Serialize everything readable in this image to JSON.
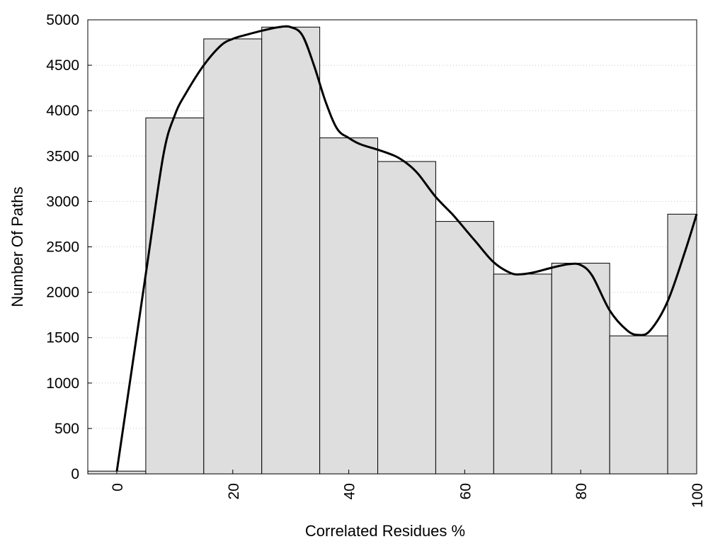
{
  "chart_data": {
    "type": "bar",
    "title": "",
    "xlabel": "Correlated Residues %",
    "ylabel": "Number Of Paths",
    "xlim": [
      -5,
      100
    ],
    "ylim": [
      0,
      5000
    ],
    "grid": "horizontal-dotted",
    "bar_color": "#dedede",
    "bar_edge_color": "#000000",
    "line_color": "#000000",
    "x_ticks": [
      0,
      20,
      40,
      60,
      80,
      100
    ],
    "y_ticks": [
      0,
      500,
      1000,
      1500,
      2000,
      2500,
      3000,
      3500,
      4000,
      4500,
      5000
    ],
    "bars": {
      "bin_width": 10,
      "centers": [
        0,
        10,
        20,
        30,
        40,
        50,
        60,
        70,
        80,
        90,
        100
      ],
      "values": [
        30,
        3920,
        4790,
        4920,
        3700,
        3440,
        2780,
        2200,
        2320,
        1520,
        2860
      ]
    },
    "curve": {
      "x": [
        0,
        5,
        8,
        10,
        12,
        15,
        18,
        20,
        22,
        25,
        28,
        30,
        32,
        34,
        36,
        38,
        40,
        42,
        45,
        48,
        50,
        52,
        55,
        58,
        60,
        62,
        65,
        68,
        70,
        72,
        75,
        78,
        80,
        82,
        85,
        88,
        90,
        92,
        95,
        98,
        100
      ],
      "y": [
        30,
        2200,
        3500,
        3950,
        4200,
        4500,
        4720,
        4790,
        4830,
        4880,
        4920,
        4920,
        4830,
        4500,
        4100,
        3800,
        3700,
        3630,
        3570,
        3500,
        3420,
        3300,
        3050,
        2850,
        2700,
        2550,
        2330,
        2210,
        2200,
        2220,
        2270,
        2310,
        2300,
        2180,
        1800,
        1580,
        1530,
        1580,
        1900,
        2450,
        2860
      ]
    }
  }
}
